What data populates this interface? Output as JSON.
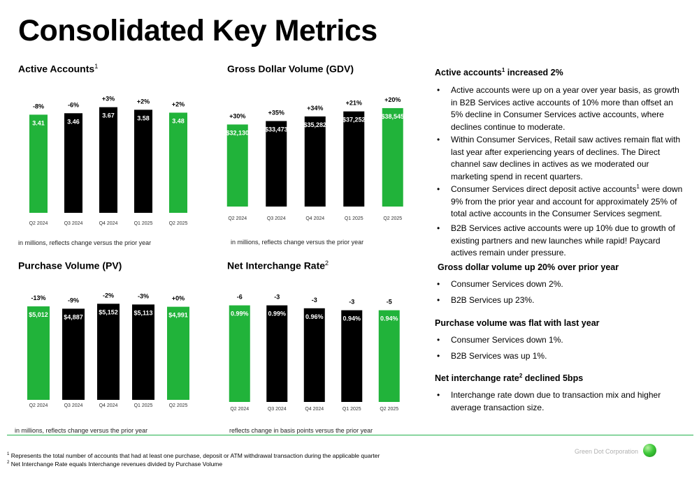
{
  "title": "Consolidated Key Metrics",
  "colors": {
    "green": "#21b33a",
    "black": "#000000",
    "accent_line": "#22b14c"
  },
  "chart_data": [
    {
      "id": "active_accounts",
      "type": "bar",
      "title": "Active Accounts",
      "title_sup": "1",
      "note": "in millions, reflects change versus the prior year",
      "categories": [
        "Q2 2024",
        "Q3 2024",
        "Q4 2024",
        "Q1 2025",
        "Q2 2025"
      ],
      "values": [
        3.41,
        3.46,
        3.67,
        3.58,
        3.48
      ],
      "value_labels": [
        "3.41",
        "3.46",
        "3.67",
        "3.58",
        "3.48"
      ],
      "change_labels": [
        "-8%",
        "-6%",
        "+3%",
        "+2%",
        "+2%"
      ],
      "bar_colors": [
        "#21b33a",
        "#000000",
        "#000000",
        "#000000",
        "#21b33a"
      ],
      "ylim": [
        0,
        4.0
      ]
    },
    {
      "id": "gdv",
      "type": "bar",
      "title": "Gross Dollar Volume (GDV)",
      "title_sup": "",
      "note": "in millions, reflects change versus the prior year",
      "categories": [
        "Q2 2024",
        "Q3 2024",
        "Q4 2024",
        "Q1 2025",
        "Q2 2025"
      ],
      "values": [
        32130,
        33473,
        35282,
        37252,
        38545
      ],
      "value_labels": [
        "$32,130",
        "$33,473",
        "$35,282",
        "$37,252",
        "$38,545"
      ],
      "change_labels": [
        "+30%",
        "+35%",
        "+34%",
        "+21%",
        "+20%"
      ],
      "bar_colors": [
        "#21b33a",
        "#000000",
        "#000000",
        "#000000",
        "#21b33a"
      ],
      "ylim": [
        0,
        50000
      ]
    },
    {
      "id": "purchase_volume",
      "type": "bar",
      "title": "Purchase Volume (PV)",
      "title_sup": "",
      "note": "in millions, reflects change versus the prior year",
      "categories": [
        "Q2 2024",
        "Q3 2024",
        "Q4 2024",
        "Q1 2025",
        "Q2 2025"
      ],
      "values": [
        5012,
        4887,
        5152,
        5113,
        4991
      ],
      "value_labels": [
        "$5,012",
        "$4,887",
        "$5,152",
        "$5,113",
        "$4,991"
      ],
      "change_labels": [
        "-13%",
        "-9%",
        "-2%",
        "-3%",
        "+0%"
      ],
      "bar_colors": [
        "#21b33a",
        "#000000",
        "#000000",
        "#000000",
        "#21b33a"
      ],
      "ylim": [
        0,
        5650
      ]
    },
    {
      "id": "net_interchange_rate",
      "type": "bar",
      "title": "Net Interchange Rate",
      "title_sup": "2",
      "note": "reflects change in basis points versus the prior year",
      "categories": [
        "Q2 2024",
        "Q3 2024",
        "Q4 2024",
        "Q1 2025",
        "Q2 2025"
      ],
      "values": [
        0.99,
        0.99,
        0.96,
        0.94,
        0.94
      ],
      "value_labels": [
        "0.99%",
        "0.99%",
        "0.96%",
        "0.94%",
        "0.94%"
      ],
      "change_labels": [
        "-6",
        "-3",
        "-3",
        "-3",
        "-5"
      ],
      "bar_colors": [
        "#21b33a",
        "#000000",
        "#000000",
        "#000000",
        "#21b33a"
      ],
      "ylim": [
        0,
        1.08
      ]
    }
  ],
  "commentary": [
    {
      "heading": "Active accounts",
      "heading_sup": "1",
      "heading_rest": " increased 2%",
      "bullets": [
        {
          "text": "Active accounts were up on a year over year basis, as growth in B2B Services active accounts of 10% more than offset an 5% decline in Consumer Services active accounts, where declines continue to moderate."
        },
        {
          "text": "Within Consumer Services, Retail saw actives remain flat with last year after experiencing years of declines. The Direct channel saw declines in actives as we moderated our marketing spend in recent quarters."
        },
        {
          "text": "Consumer Services direct deposit active accounts",
          "sup": "1",
          "text_rest": " were down 9% from the prior year and account for approximately 25% of total active accounts in the Consumer Services segment."
        },
        {
          "text": "B2B Services active accounts were up 10% due to growth of existing partners and new launches while rapid! Paycard actives remain under pressure."
        }
      ]
    },
    {
      "heading": "Gross dollar volume up 20% over prior year",
      "bullets": [
        {
          "text": "Consumer Services down 2%."
        },
        {
          "text": "B2B Services up 23%."
        }
      ]
    },
    {
      "heading": "Purchase volume was flat with last year",
      "bullets": [
        {
          "text": "Consumer Services down 1%."
        },
        {
          "text": "B2B Services was up 1%."
        }
      ]
    },
    {
      "heading": "Net interchange rate",
      "heading_sup": "2",
      "heading_rest": " declined  5bps",
      "bullets": [
        {
          "text": "Interchange rate down due to transaction mix and higher average transaction size."
        }
      ]
    }
  ],
  "footnotes": [
    {
      "sup": "1",
      "text": " Represents the total number of accounts that had at least one purchase, deposit or ATM withdrawal transaction during the applicable quarter"
    },
    {
      "sup": "2",
      "text": " Net Interchange Rate equals Interchange revenues divided by Purchase Volume"
    }
  ],
  "brand": "Green Dot Corporation"
}
